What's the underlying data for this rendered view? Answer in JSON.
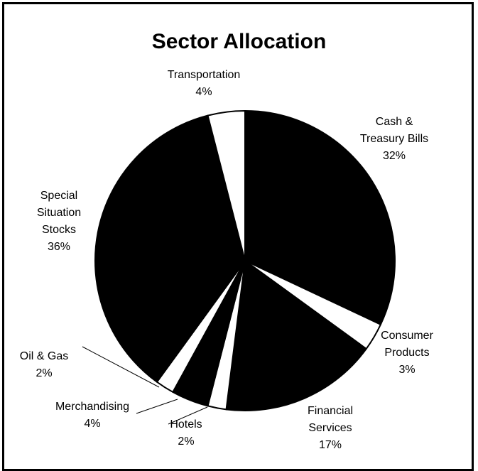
{
  "chart_data": {
    "type": "pie",
    "title": "Sector Allocation",
    "categories": [
      "Cash &\nTreasury Bills",
      "Consumer\nProducts",
      "Financial\nServices",
      "Hotels",
      "Merchandising",
      "Oil & Gas",
      "Special\nSituation\nStocks",
      "Transportation"
    ],
    "values": [
      32,
      3,
      17,
      2,
      4,
      2,
      36,
      4
    ],
    "value_labels": [
      "32%",
      "3%",
      "17%",
      "2%",
      "4%",
      "2%",
      "36%",
      "4%"
    ],
    "colors": [
      "#000000",
      "#ffffff",
      "#000000",
      "#ffffff",
      "#000000",
      "#ffffff",
      "#000000",
      "#ffffff"
    ]
  }
}
